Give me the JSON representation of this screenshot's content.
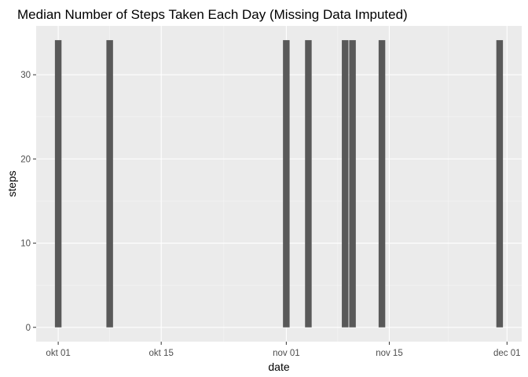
{
  "chart_data": {
    "type": "bar",
    "title": "Median Number of Steps Taken Each Day (Missing Data Imputed)",
    "xlabel": "date",
    "ylabel": "steps",
    "x_axis_type": "date",
    "xlim": [
      "2012-09-28",
      "2012-12-03"
    ],
    "ylim": [
      -1.7,
      35.8
    ],
    "x_ticks": [
      {
        "value": "2012-10-01",
        "label": "okt 01"
      },
      {
        "value": "2012-10-15",
        "label": "okt 15"
      },
      {
        "value": "2012-11-01",
        "label": "nov 01"
      },
      {
        "value": "2012-11-15",
        "label": "nov 15"
      },
      {
        "value": "2012-12-01",
        "label": "dec 01"
      }
    ],
    "y_ticks": [
      0,
      10,
      20,
      30
    ],
    "x": [
      "2012-10-01",
      "2012-10-08",
      "2012-11-01",
      "2012-11-04",
      "2012-11-09",
      "2012-11-10",
      "2012-11-14",
      "2012-11-30"
    ],
    "values": [
      34.11,
      34.11,
      34.11,
      34.11,
      34.11,
      34.11,
      34.11,
      34.11
    ],
    "grid": true,
    "colors": {
      "panel_background": "#ebebeb",
      "grid_major": "#ffffff",
      "grid_minor": "#f5f5f5",
      "bar_fill": "#595959",
      "tick_mark": "#333333"
    }
  }
}
